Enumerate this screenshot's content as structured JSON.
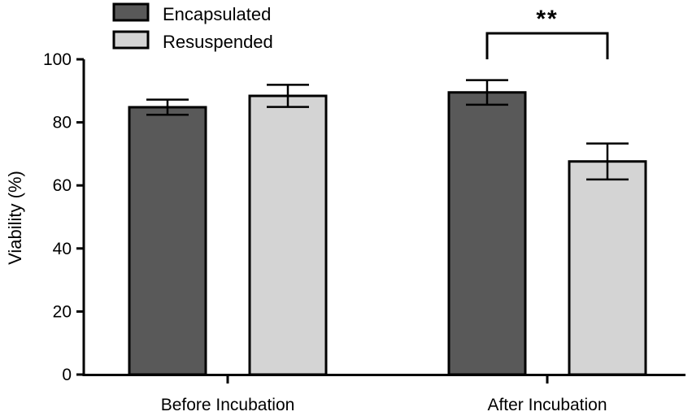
{
  "chart_data": {
    "type": "bar",
    "title": "",
    "xlabel": "",
    "ylabel": "Viability (%)",
    "ylim": [
      0,
      100
    ],
    "yticks": [
      0,
      20,
      40,
      60,
      80,
      100
    ],
    "categories": [
      "Before Incubation",
      "After Incubation"
    ],
    "series": [
      {
        "name": "Encapsulated",
        "color": "#595959",
        "values": [
          84.8,
          89.5
        ],
        "errors": [
          2.4,
          3.9
        ]
      },
      {
        "name": "Resuspended",
        "color": "#d4d4d4",
        "values": [
          88.4,
          67.6
        ],
        "errors": [
          3.5,
          5.7
        ]
      }
    ],
    "legend_position": "top-left",
    "grid": false,
    "annotations": [
      {
        "text": "**",
        "type": "significance-bracket",
        "category": "After Incubation",
        "between_series": [
          "Encapsulated",
          "Resuspended"
        ]
      }
    ]
  }
}
